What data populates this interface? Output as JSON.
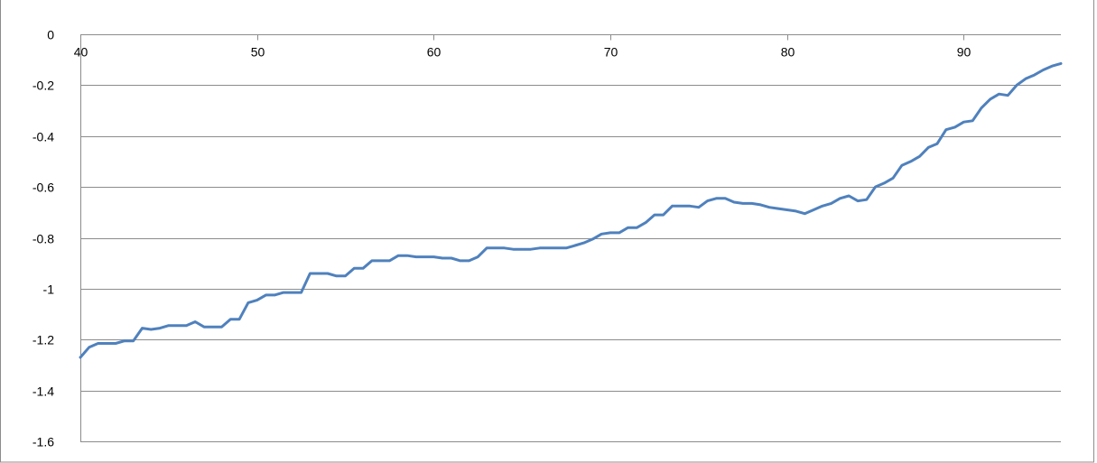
{
  "chart_data": {
    "type": "line",
    "title": "",
    "xlabel": "",
    "ylabel": "",
    "xlim": [
      40,
      95.5
    ],
    "ylim": [
      -1.6,
      0
    ],
    "x_ticks": [
      40,
      50,
      60,
      70,
      80,
      90
    ],
    "y_ticks": [
      0,
      -0.2,
      -0.4,
      -0.6,
      -0.8,
      -1,
      -1.2,
      -1.4,
      -1.6
    ],
    "x_tick_labels": [
      "40",
      "50",
      "60",
      "70",
      "80",
      "90"
    ],
    "y_tick_labels": [
      "0",
      "-0.2",
      "-0.4",
      "-0.6",
      "-0.8",
      "-1",
      "-1.2",
      "-1.4",
      "-1.6"
    ],
    "grid": "horizontal",
    "legend": "none",
    "colors": {
      "series": "#4f81bd",
      "grid": "#8c8c8c",
      "frame": "#8c8c8c"
    },
    "series": [
      {
        "x": [
          40,
          40.5,
          41,
          41.5,
          42,
          42.5,
          43,
          43.5,
          44,
          44.5,
          45,
          45.5,
          46,
          46.5,
          47,
          47.5,
          48,
          48.5,
          49,
          49.5,
          50,
          50.5,
          51,
          51.5,
          52,
          52.5,
          53,
          53.5,
          54,
          54.5,
          55,
          55.5,
          56,
          56.5,
          57,
          57.5,
          58,
          58.5,
          59,
          59.5,
          60,
          60.5,
          61,
          61.5,
          62,
          62.5,
          63,
          63.5,
          64,
          64.5,
          65,
          65.5,
          66,
          66.5,
          67,
          67.5,
          68,
          68.5,
          69,
          69.5,
          70,
          70.5,
          71,
          71.5,
          72,
          72.5,
          73,
          73.5,
          74,
          74.5,
          75,
          75.5,
          76,
          76.5,
          77,
          77.5,
          78,
          78.5,
          79,
          79.5,
          80,
          80.5,
          81,
          81.5,
          82,
          82.5,
          83,
          83.5,
          84,
          84.5,
          85,
          85.5,
          86,
          86.5,
          87,
          87.5,
          88,
          88.5,
          89,
          89.5,
          90,
          90.5,
          91,
          91.5,
          92,
          92.5,
          93,
          93.5,
          94,
          94.5,
          95,
          95.5
        ],
        "values": [
          -1.27,
          -1.23,
          -1.215,
          -1.215,
          -1.215,
          -1.205,
          -1.205,
          -1.155,
          -1.16,
          -1.155,
          -1.145,
          -1.145,
          -1.145,
          -1.13,
          -1.15,
          -1.15,
          -1.15,
          -1.12,
          -1.12,
          -1.055,
          -1.045,
          -1.025,
          -1.025,
          -1.015,
          -1.015,
          -1.015,
          -0.94,
          -0.94,
          -0.94,
          -0.95,
          -0.95,
          -0.92,
          -0.92,
          -0.89,
          -0.89,
          -0.89,
          -0.87,
          -0.87,
          -0.875,
          -0.875,
          -0.875,
          -0.88,
          -0.88,
          -0.89,
          -0.89,
          -0.875,
          -0.84,
          -0.84,
          -0.84,
          -0.845,
          -0.845,
          -0.845,
          -0.84,
          -0.84,
          -0.84,
          -0.84,
          -0.83,
          -0.82,
          -0.805,
          -0.785,
          -0.78,
          -0.78,
          -0.76,
          -0.76,
          -0.74,
          -0.71,
          -0.71,
          -0.675,
          -0.675,
          -0.675,
          -0.68,
          -0.655,
          -0.645,
          -0.645,
          -0.66,
          -0.665,
          -0.665,
          -0.67,
          -0.68,
          -0.685,
          -0.69,
          -0.695,
          -0.705,
          -0.69,
          -0.675,
          -0.665,
          -0.645,
          -0.635,
          -0.655,
          -0.65,
          -0.6,
          -0.585,
          -0.565,
          -0.515,
          -0.5,
          -0.48,
          -0.445,
          -0.43,
          -0.375,
          -0.365,
          -0.345,
          -0.34,
          -0.29,
          -0.255,
          -0.235,
          -0.24,
          -0.2,
          -0.175,
          -0.16,
          -0.14,
          -0.125,
          -0.115
        ]
      }
    ]
  }
}
